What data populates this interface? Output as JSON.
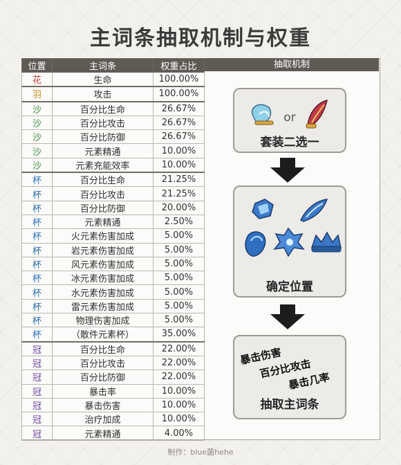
{
  "title": "主词条抽取机制与权重",
  "headers": {
    "slot": "位置",
    "stat": "主词条",
    "weight": "权重占比",
    "mechanism": "抽取机制"
  },
  "slot_colors": {
    "花": "#c0392b",
    "羽": "#c48a1b",
    "沙": "#3f8f3a",
    "杯": "#2b6fb4",
    "冠": "#6b3f9c"
  },
  "rows": [
    {
      "slot": "花",
      "stat": "生命",
      "weight": "100.00%"
    },
    {
      "slot": "羽",
      "stat": "攻击",
      "weight": "100.00%"
    },
    {
      "slot": "沙",
      "stat": "百分比生命",
      "weight": "26.67%"
    },
    {
      "slot": "沙",
      "stat": "百分比攻击",
      "weight": "26.67%"
    },
    {
      "slot": "沙",
      "stat": "百分比防御",
      "weight": "26.67%"
    },
    {
      "slot": "沙",
      "stat": "元素精通",
      "weight": "10.00%"
    },
    {
      "slot": "沙",
      "stat": "元素充能效率",
      "weight": "10.00%"
    },
    {
      "slot": "杯",
      "stat": "百分比生命",
      "weight": "21.25%"
    },
    {
      "slot": "杯",
      "stat": "百分比攻击",
      "weight": "21.25%"
    },
    {
      "slot": "杯",
      "stat": "百分比防御",
      "weight": "20.00%"
    },
    {
      "slot": "杯",
      "stat": "元素精通",
      "weight": "2.50%"
    },
    {
      "slot": "杯",
      "stat": "火元素伤害加成",
      "weight": "5.00%"
    },
    {
      "slot": "杯",
      "stat": "岩元素伤害加成",
      "weight": "5.00%"
    },
    {
      "slot": "杯",
      "stat": "风元素伤害加成",
      "weight": "5.00%"
    },
    {
      "slot": "杯",
      "stat": "冰元素伤害加成",
      "weight": "5.00%"
    },
    {
      "slot": "杯",
      "stat": "水元素伤害加成",
      "weight": "5.00%"
    },
    {
      "slot": "杯",
      "stat": "雷元素伤害加成",
      "weight": "5.00%"
    },
    {
      "slot": "杯",
      "stat": "物理伤害加成",
      "weight": "5.00%"
    },
    {
      "slot": "杯",
      "stat": "（散件元素杯）",
      "weight": "35.00%"
    },
    {
      "slot": "冠",
      "stat": "百分比生命",
      "weight": "22.00%"
    },
    {
      "slot": "冠",
      "stat": "百分比攻击",
      "weight": "22.00%"
    },
    {
      "slot": "冠",
      "stat": "百分比防御",
      "weight": "22.00%"
    },
    {
      "slot": "冠",
      "stat": "暴击率",
      "weight": "10.00%"
    },
    {
      "slot": "冠",
      "stat": "暴击伤害",
      "weight": "10.00%"
    },
    {
      "slot": "冠",
      "stat": "治疗加成",
      "weight": "10.00%"
    },
    {
      "slot": "冠",
      "stat": "元素精通",
      "weight": "4.00%"
    }
  ],
  "mechanism": {
    "step1": {
      "or_text": "or",
      "label": "套装二选一"
    },
    "step2": {
      "label": "确定位置"
    },
    "step3": {
      "line1": "暴击伤害",
      "line2": "百分比攻击",
      "line3": "暴击几率",
      "label": "抽取主词条"
    }
  },
  "footer": "制作：blue菌hehe"
}
